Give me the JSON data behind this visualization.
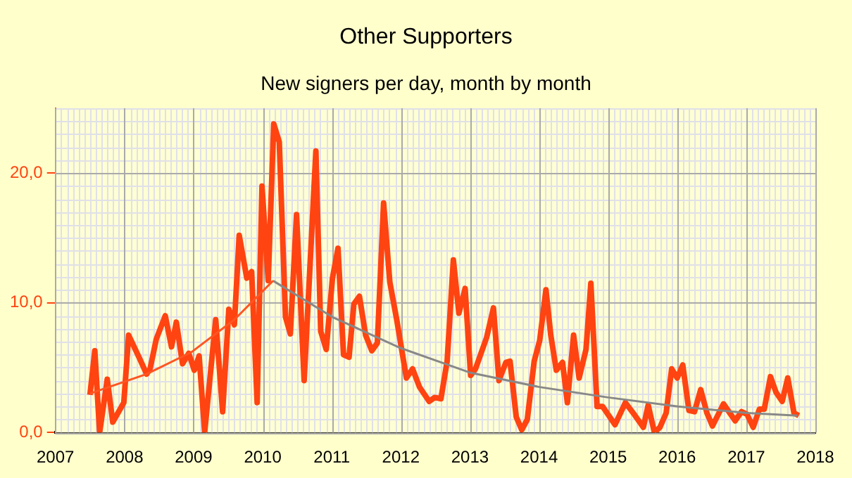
{
  "chart_data": {
    "type": "line",
    "title": "Other Supporters",
    "subtitle": "New signers per day, month by month",
    "xlim": [
      2007,
      2018
    ],
    "xticks": [
      2007,
      2008,
      2009,
      2010,
      2011,
      2012,
      2013,
      2014,
      2015,
      2016,
      2017,
      2018
    ],
    "ylim": [
      0,
      25
    ],
    "yticks": [
      {
        "value": 0,
        "label": "0,0"
      },
      {
        "value": 10,
        "label": "10,0"
      },
      {
        "value": 20,
        "label": "20,0"
      }
    ],
    "grid": true,
    "legend": false,
    "marker": "none",
    "line_style": "solid",
    "series": [
      {
        "color": "#ff4411",
        "x": [
          2007.5,
          2007.57,
          2007.64,
          2007.75,
          2007.83,
          2007.99,
          2008.06,
          2008.21,
          2008.32,
          2008.37,
          2008.46,
          2008.59,
          2008.68,
          2008.75,
          2008.84,
          2008.93,
          2009.01,
          2009.08,
          2009.16,
          2009.32,
          2009.42,
          2009.51,
          2009.59,
          2009.66,
          2009.77,
          2009.84,
          2009.92,
          2009.99,
          2010.08,
          2010.16,
          2010.24,
          2010.33,
          2010.4,
          2010.49,
          2010.6,
          2010.77,
          2010.84,
          2010.92,
          2011.01,
          2011.09,
          2011.17,
          2011.25,
          2011.32,
          2011.4,
          2011.49,
          2011.58,
          2011.66,
          2011.75,
          2011.84,
          2011.94,
          2012.08,
          2012.17,
          2012.27,
          2012.41,
          2012.49,
          2012.58,
          2012.67,
          2012.76,
          2012.84,
          2012.93,
          2013.01,
          2013.08,
          2013.24,
          2013.34,
          2013.42,
          2013.52,
          2013.58,
          2013.67,
          2013.75,
          2013.83,
          2013.93,
          2014.01,
          2014.1,
          2014.17,
          2014.25,
          2014.34,
          2014.41,
          2014.5,
          2014.58,
          2014.68,
          2014.75,
          2014.84,
          2014.92,
          2015.01,
          2015.1,
          2015.25,
          2015.39,
          2015.51,
          2015.58,
          2015.67,
          2015.75,
          2015.84,
          2015.92,
          2016.0,
          2016.08,
          2016.17,
          2016.25,
          2016.34,
          2016.43,
          2016.51,
          2016.67,
          2016.84,
          2016.93,
          2017.01,
          2017.1,
          2017.19,
          2017.26,
          2017.35,
          2017.43,
          2017.52,
          2017.6,
          2017.69,
          2017.76
        ],
        "values": [
          2.9,
          6.3,
          0,
          4.1,
          0.8,
          2.3,
          7.5,
          5.8,
          4.5,
          4.9,
          7.2,
          9.0,
          6.6,
          8.5,
          5.3,
          6.1,
          4.8,
          5.9,
          0,
          8.7,
          1.6,
          9.5,
          8.3,
          15.2,
          11.9,
          12.4,
          2.3,
          19.0,
          11.7,
          23.8,
          22.4,
          8.9,
          7.6,
          16.8,
          4.0,
          21.7,
          7.8,
          6.4,
          11.9,
          14.2,
          6.0,
          5.8,
          9.9,
          10.5,
          7.5,
          6.3,
          6.9,
          17.7,
          11.6,
          8.7,
          4.2,
          4.9,
          3.5,
          2.4,
          2.7,
          2.6,
          5.5,
          13.3,
          9.2,
          11.1,
          4.4,
          4.9,
          7.3,
          9.6,
          4.0,
          5.4,
          5.5,
          1.2,
          0.2,
          1.0,
          5.5,
          7.1,
          11.0,
          7.5,
          4.8,
          5.4,
          2.3,
          7.5,
          4.2,
          6.4,
          11.5,
          2.0,
          2.0,
          1.3,
          0.6,
          2.3,
          1.3,
          0.4,
          2.1,
          0,
          0.4,
          1.5,
          4.9,
          4.2,
          5.2,
          1.7,
          1.6,
          3.3,
          1.5,
          0.5,
          2.2,
          0.9,
          1.6,
          1.4,
          0.4,
          1.8,
          1.8,
          4.3,
          3.1,
          2.4,
          4.2,
          1.5,
          1.3
        ]
      },
      {
        "color": "#ff5522",
        "x": [
          2007.5,
          2008.32,
          2008.97,
          2009.59,
          2010.15
        ],
        "values": [
          3.0,
          4.5,
          6.2,
          8.7,
          11.7
        ]
      },
      {
        "color": "#888888",
        "x": [
          2010.15,
          2011.01,
          2012.0,
          2013.01,
          2014.01,
          2015.0,
          2016.01,
          2017.01,
          2017.74
        ],
        "values": [
          11.7,
          8.9,
          6.5,
          4.6,
          3.5,
          2.7,
          2.0,
          1.5,
          1.3
        ]
      }
    ]
  }
}
